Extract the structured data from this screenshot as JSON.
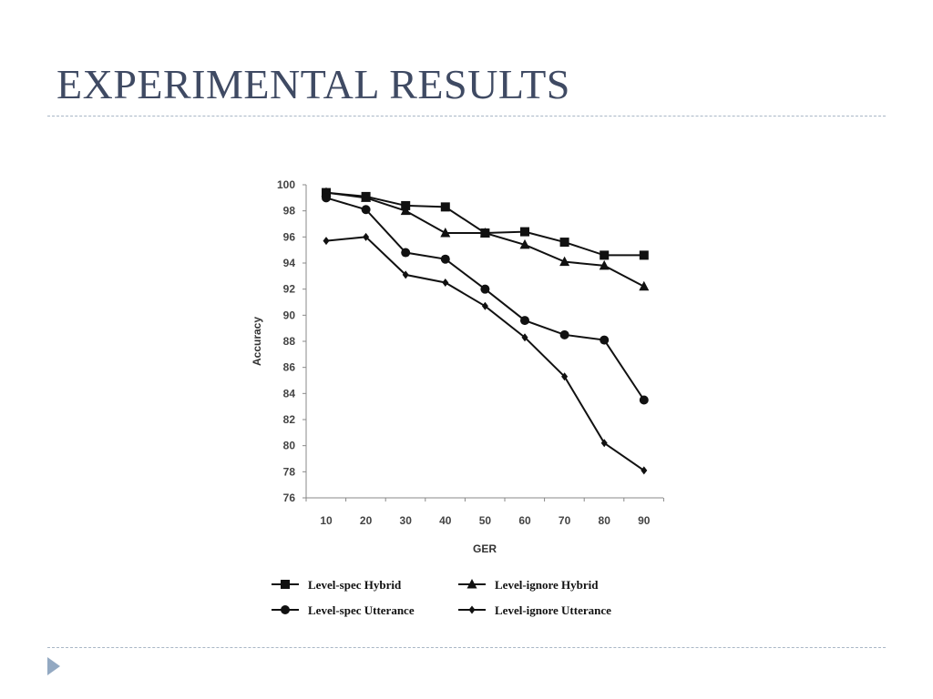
{
  "slide": {
    "title": "EXPERIMENTAL RESULTS"
  },
  "colors": {
    "title": "#3f4a63",
    "rule": "#a9b7c6",
    "nav_arrow": "#93a9c2",
    "series": "#111111"
  },
  "chart_data": {
    "type": "line",
    "title": "",
    "xlabel": "GER",
    "ylabel": "Accuracy",
    "x": [
      10,
      20,
      30,
      40,
      50,
      60,
      70,
      80,
      90
    ],
    "ylim": [
      76,
      100
    ],
    "yticks": [
      76,
      78,
      80,
      82,
      84,
      86,
      88,
      90,
      92,
      94,
      96,
      98,
      100
    ],
    "grid": false,
    "legend_position": "bottom",
    "series": [
      {
        "name": "Level-spec Hybrid",
        "marker": "square",
        "values": [
          99.4,
          99.1,
          98.4,
          98.3,
          96.3,
          96.4,
          95.6,
          94.6,
          94.6
        ]
      },
      {
        "name": "Level-ignore Hybrid",
        "marker": "triangle",
        "values": [
          99.4,
          99.0,
          98.0,
          96.3,
          96.3,
          95.4,
          94.1,
          93.8,
          92.2
        ]
      },
      {
        "name": "Level-spec Utterance",
        "marker": "circle",
        "values": [
          99.0,
          98.1,
          94.8,
          94.3,
          92.0,
          89.6,
          88.5,
          88.1,
          83.5
        ]
      },
      {
        "name": "Level-ignore Utterance",
        "marker": "diamond",
        "values": [
          95.7,
          96.0,
          93.1,
          92.5,
          90.7,
          88.3,
          85.3,
          80.2,
          78.1
        ]
      }
    ]
  }
}
